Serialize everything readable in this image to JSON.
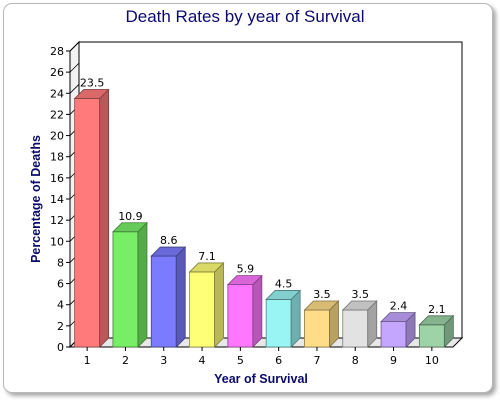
{
  "chart_data": {
    "type": "bar",
    "title": "Death Rates by year of Survival",
    "xlabel": "Year of Survival",
    "ylabel": "Percentage of Deaths",
    "categories": [
      "1",
      "2",
      "3",
      "4",
      "5",
      "6",
      "7",
      "8",
      "9",
      "10"
    ],
    "values": [
      23.5,
      10.9,
      8.6,
      7.1,
      5.9,
      4.5,
      3.5,
      3.5,
      2.4,
      2.1
    ],
    "value_labels": [
      "23.5",
      "10.9",
      "8.6",
      "7.1",
      "5.9",
      "4.5",
      "3.5",
      "3.5",
      "2.4",
      "2.1"
    ],
    "ylim": [
      0,
      28
    ],
    "yticks": [
      0,
      2,
      4,
      6,
      8,
      10,
      12,
      14,
      16,
      18,
      20,
      22,
      24,
      26,
      28
    ],
    "grid": false,
    "style": "3d",
    "colors": [
      "#ff7b7b",
      "#77ee66",
      "#7b7bff",
      "#ffff77",
      "#ff77ff",
      "#99f4f4",
      "#ffdd88",
      "#e2e2e2",
      "#c5a6ff",
      "#9dd3a6"
    ]
  }
}
